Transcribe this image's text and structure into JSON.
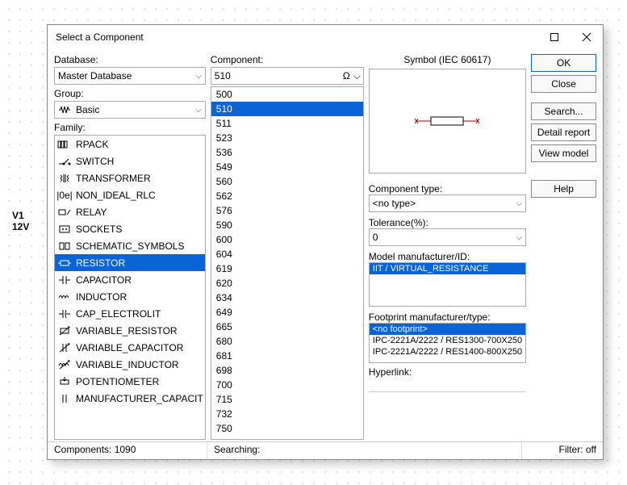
{
  "canvas": {
    "source_label_1": "V1",
    "source_label_2": "12V"
  },
  "dialog": {
    "title": "Select a Component",
    "labels": {
      "database": "Database:",
      "group": "Group:",
      "family": "Family:",
      "component": "Component:",
      "symbol": "Symbol (IEC 60617)",
      "component_type": "Component type:",
      "tolerance": "Tolerance(%):",
      "model_mfr": "Model manufacturer/ID:",
      "footprint_mfr": "Footprint manufacturer/type:",
      "hyperlink": "Hyperlink:"
    },
    "database_value": "Master Database",
    "group_value": "Basic",
    "families": [
      {
        "name": "RPACK",
        "icon": "rpack"
      },
      {
        "name": "SWITCH",
        "icon": "switch"
      },
      {
        "name": "TRANSFORMER",
        "icon": "transformer"
      },
      {
        "name": "NON_IDEAL_RLC",
        "icon": "nonideal"
      },
      {
        "name": "RELAY",
        "icon": "relay"
      },
      {
        "name": "SOCKETS",
        "icon": "sockets"
      },
      {
        "name": "SCHEMATIC_SYMBOLS",
        "icon": "schematic"
      },
      {
        "name": "RESISTOR",
        "icon": "resistor",
        "selected": true
      },
      {
        "name": "CAPACITOR",
        "icon": "capacitor"
      },
      {
        "name": "INDUCTOR",
        "icon": "inductor"
      },
      {
        "name": "CAP_ELECTROLIT",
        "icon": "cap_elec"
      },
      {
        "name": "VARIABLE_RESISTOR",
        "icon": "var_res"
      },
      {
        "name": "VARIABLE_CAPACITOR",
        "icon": "var_cap"
      },
      {
        "name": "VARIABLE_INDUCTOR",
        "icon": "var_ind"
      },
      {
        "name": "POTENTIOMETER",
        "icon": "pot"
      },
      {
        "name": "MANUFACTURER_CAPACIT",
        "icon": "mfr_cap"
      }
    ],
    "component_input": "510",
    "components": [
      "500",
      "510",
      "511",
      "523",
      "536",
      "549",
      "560",
      "562",
      "576",
      "590",
      "600",
      "604",
      "619",
      "620",
      "634",
      "649",
      "665",
      "680",
      "681",
      "698",
      "700",
      "715",
      "732",
      "750"
    ],
    "component_selected": "510",
    "component_type_value": "<no type>",
    "tolerance_value": "0",
    "model_rows": [
      {
        "text": "IIT / VIRTUAL_RESISTANCE",
        "sel": true
      }
    ],
    "footprint_rows": [
      {
        "text": "<no footprint>",
        "sel": true
      },
      {
        "text": "IPC-2221A/2222 / RES1300-700X250"
      },
      {
        "text": "IPC-2221A/2222 / RES1400-800X250"
      }
    ],
    "buttons": {
      "ok": "OK",
      "close": "Close",
      "search": "Search...",
      "detail": "Detail report",
      "view": "View model",
      "help": "Help"
    },
    "status": {
      "components": "Components: 1090",
      "searching": "Searching:",
      "filter": "Filter: off"
    }
  },
  "colors": {
    "selection": "#0a64d8"
  }
}
